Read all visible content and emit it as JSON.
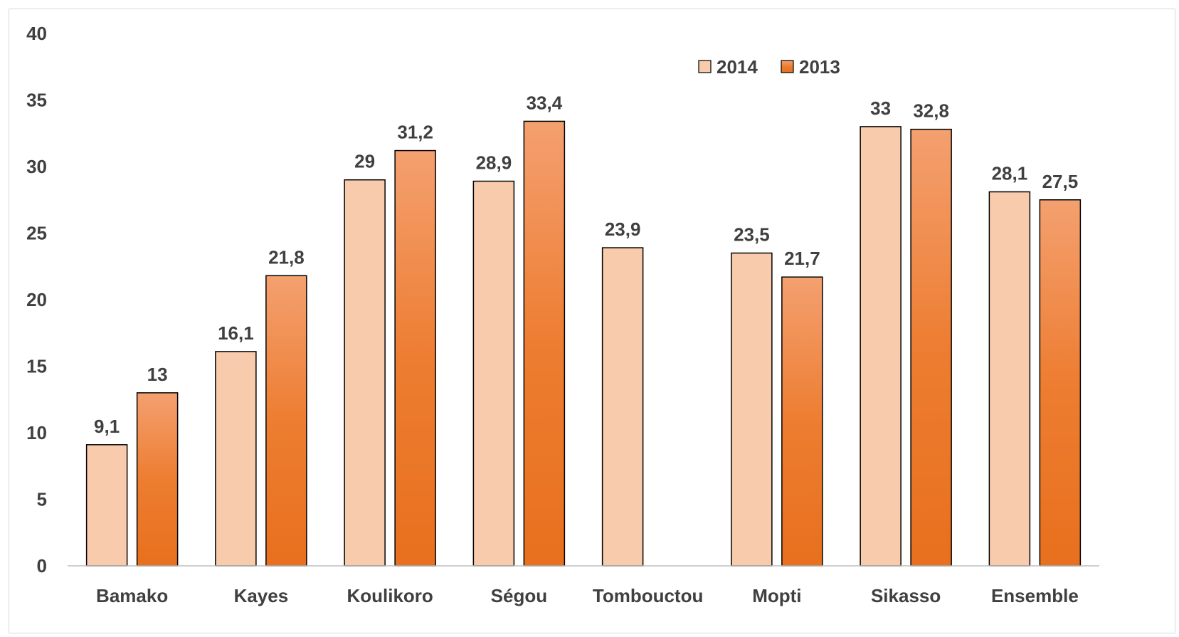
{
  "chart_data": {
    "type": "bar",
    "categories": [
      "Bamako",
      "Kayes",
      "Koulikoro",
      "Ségou",
      "Tombouctou",
      "Mopti",
      "Sikasso",
      "Ensemble"
    ],
    "series": [
      {
        "name": "2014",
        "values": [
          9.1,
          16.1,
          29,
          28.9,
          23.9,
          23.5,
          33,
          28.1
        ],
        "labels": [
          "9,1",
          "16,1",
          "29",
          "28,9",
          "23,9",
          "23,5",
          "33",
          "28,1"
        ],
        "color": "#F8CBAD"
      },
      {
        "name": "2013",
        "values": [
          13,
          21.8,
          31.2,
          33.4,
          null,
          21.7,
          32.8,
          27.5
        ],
        "labels": [
          "13",
          "21,8",
          "31,2",
          "33,4",
          "",
          "21,7",
          "32,8",
          "27,5"
        ],
        "color": "#ED7D31",
        "color_light": "#F4A070",
        "color_dark": "#E8701E"
      }
    ],
    "y_ticks": [
      "0",
      "5",
      "10",
      "15",
      "20",
      "25",
      "30",
      "35",
      "40"
    ],
    "ylim": [
      0,
      40
    ],
    "grid": false,
    "legend_position": "top-right"
  }
}
